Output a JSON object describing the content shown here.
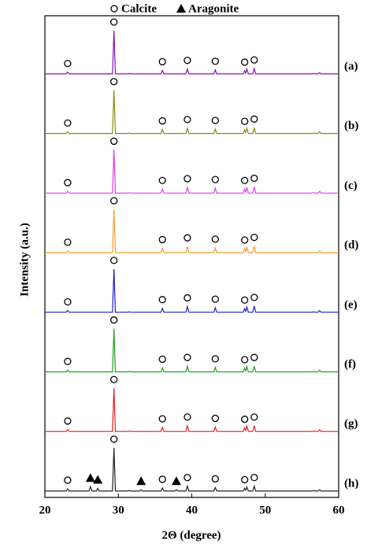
{
  "chart_data": {
    "type": "stacked-line",
    "legend": [
      {
        "name": "Calcite",
        "symbol": "circle"
      },
      {
        "name": "Aragonite",
        "symbol": "triangle"
      }
    ],
    "xlabel": "2Θ (degree)",
    "ylabel": "Intensity (a.u.)",
    "xlim": [
      20,
      60
    ],
    "xticks": [
      20,
      30,
      40,
      50,
      60
    ],
    "x": [
      20,
      22.9,
      23.1,
      23.3,
      26.0,
      26.2,
      26.4,
      27.0,
      27.2,
      27.4,
      29.2,
      29.4,
      29.6,
      31.2,
      31.4,
      31.6,
      32.9,
      33.1,
      33.3,
      35.8,
      36.0,
      36.2,
      37.7,
      37.9,
      38.1,
      39.2,
      39.4,
      39.6,
      43.0,
      43.2,
      43.4,
      47.0,
      47.2,
      47.35,
      47.5,
      47.7,
      48.3,
      48.5,
      48.7,
      56.4,
      56.6,
      56.8,
      57.2,
      57.4,
      57.6,
      60
    ],
    "series": [
      {
        "name": "(a)",
        "color": "#8b10b0",
        "calcite_x": [
          23.1,
          29.4,
          36.0,
          39.4,
          43.2,
          47.2,
          48.5
        ],
        "aragonite_x": [],
        "values": [
          2,
          2,
          6,
          2,
          2,
          2,
          2,
          2,
          2,
          2,
          2,
          100,
          2,
          2,
          3,
          2,
          2,
          2,
          2,
          2,
          10,
          2,
          2,
          2,
          2,
          2,
          13,
          2,
          2,
          11,
          2,
          2,
          9,
          4,
          13,
          2,
          2,
          14,
          2,
          2,
          3,
          2,
          2,
          5,
          2,
          2
        ]
      },
      {
        "name": "(b)",
        "color": "#8b8b10",
        "calcite_x": [
          23.1,
          29.4,
          36.0,
          39.4,
          43.2,
          47.2,
          48.5
        ],
        "aragonite_x": [],
        "values": [
          2,
          2,
          6,
          2,
          2,
          2,
          2,
          2,
          2,
          2,
          2,
          100,
          2,
          2,
          3,
          2,
          2,
          2,
          2,
          2,
          11,
          2,
          2,
          2,
          2,
          2,
          14,
          2,
          2,
          12,
          2,
          2,
          10,
          4,
          14,
          2,
          2,
          15,
          2,
          2,
          3,
          2,
          2,
          6,
          2,
          2
        ]
      },
      {
        "name": "(c)",
        "color": "#e040e0",
        "calcite_x": [
          23.1,
          29.4,
          36.0,
          39.4,
          43.2,
          47.2,
          48.5
        ],
        "aragonite_x": [],
        "values": [
          2,
          2,
          6,
          2,
          2,
          2,
          2,
          2,
          2,
          2,
          2,
          100,
          2,
          2,
          3,
          2,
          2,
          2,
          2,
          2,
          11,
          2,
          2,
          2,
          2,
          2,
          15,
          2,
          2,
          13,
          2,
          2,
          11,
          4,
          15,
          2,
          2,
          16,
          2,
          2,
          3,
          2,
          2,
          6,
          2,
          2
        ]
      },
      {
        "name": "(d)",
        "color": "#f0a030",
        "calcite_x": [
          23.1,
          29.4,
          36.0,
          39.4,
          43.2,
          47.2,
          48.5
        ],
        "aragonite_x": [],
        "values": [
          2,
          2,
          6,
          2,
          2,
          2,
          2,
          2,
          2,
          2,
          2,
          100,
          2,
          2,
          3,
          2,
          2,
          2,
          2,
          2,
          12,
          2,
          2,
          2,
          2,
          2,
          16,
          2,
          2,
          13,
          2,
          2,
          11,
          4,
          15,
          2,
          2,
          17,
          2,
          2,
          3,
          2,
          2,
          6,
          2,
          2
        ]
      },
      {
        "name": "(e)",
        "color": "#2020c0",
        "calcite_x": [
          23.1,
          29.4,
          36.0,
          39.4,
          43.2,
          47.2,
          48.5
        ],
        "aragonite_x": [],
        "values": [
          2,
          2,
          6,
          2,
          2,
          2,
          2,
          2,
          2,
          2,
          2,
          100,
          2,
          2,
          3,
          2,
          2,
          2,
          2,
          2,
          11,
          2,
          2,
          2,
          2,
          2,
          15,
          2,
          2,
          12,
          2,
          2,
          10,
          4,
          14,
          2,
          2,
          16,
          2,
          2,
          3,
          2,
          2,
          6,
          2,
          2
        ]
      },
      {
        "name": "(f)",
        "color": "#20a020",
        "calcite_x": [
          23.1,
          29.4,
          36.0,
          39.4,
          43.2,
          47.2,
          48.5
        ],
        "aragonite_x": [],
        "values": [
          2,
          2,
          6,
          2,
          2,
          2,
          2,
          2,
          2,
          2,
          2,
          100,
          2,
          2,
          3,
          2,
          2,
          2,
          2,
          2,
          11,
          2,
          2,
          2,
          2,
          2,
          15,
          2,
          2,
          12,
          2,
          2,
          10,
          4,
          14,
          2,
          2,
          15,
          2,
          2,
          3,
          2,
          2,
          6,
          2,
          2
        ]
      },
      {
        "name": "(g)",
        "color": "#e02020",
        "calcite_x": [
          23.1,
          29.4,
          36.0,
          39.4,
          43.2,
          47.2,
          48.5
        ],
        "aragonite_x": [],
        "values": [
          2,
          2,
          6,
          2,
          2,
          2,
          2,
          2,
          2,
          2,
          2,
          100,
          2,
          2,
          3,
          2,
          2,
          2,
          2,
          2,
          11,
          2,
          2,
          2,
          2,
          2,
          15,
          2,
          2,
          12,
          2,
          2,
          10,
          4,
          14,
          2,
          2,
          15,
          2,
          2,
          3,
          2,
          2,
          6,
          2,
          2
        ]
      },
      {
        "name": "(h)",
        "color": "#202020",
        "calcite_x": [
          23.1,
          29.4,
          36.0,
          39.4,
          43.2,
          47.2,
          48.5
        ],
        "aragonite_x": [
          26.2,
          27.2,
          33.1,
          37.9
        ],
        "values": [
          2,
          2,
          7,
          2,
          2,
          12,
          2,
          2,
          8,
          2,
          2,
          100,
          2,
          2,
          3,
          2,
          2,
          5,
          2,
          2,
          9,
          2,
          2,
          5,
          2,
          2,
          13,
          2,
          2,
          10,
          2,
          2,
          8,
          4,
          11,
          2,
          2,
          13,
          2,
          2,
          3,
          2,
          2,
          5,
          2,
          2
        ]
      }
    ]
  }
}
